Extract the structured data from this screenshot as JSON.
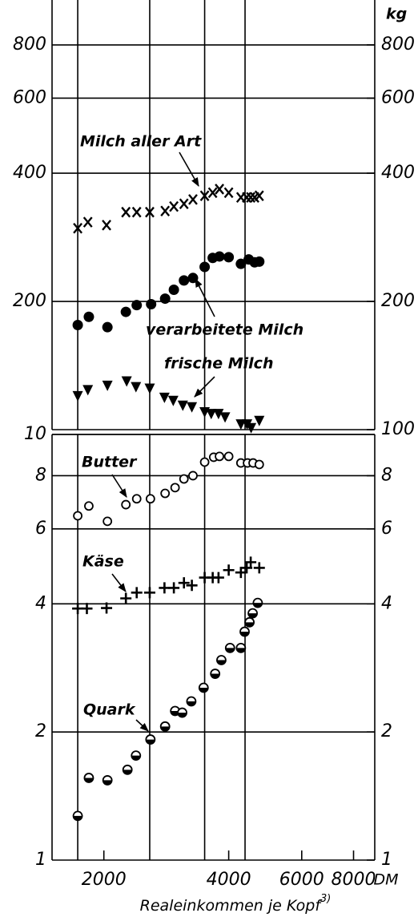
{
  "chart_data": [
    {
      "type": "scatter",
      "unit": "kg",
      "log": true,
      "xlim": [
        1500,
        9000
      ],
      "xgrid": [
        1730,
        2580,
        3500,
        4380
      ],
      "ylim": [
        100,
        1020
      ],
      "yticks": [
        200,
        400,
        600,
        800
      ],
      "y2lim": [
        100,
        1020
      ],
      "y2ticks": [
        100,
        200,
        400,
        600,
        800
      ],
      "series": [
        {
          "name": "Milch aller Art",
          "marker": "x",
          "color": "#000000",
          "x": [
            1730,
            1830,
            2030,
            2260,
            2400,
            2580,
            2810,
            2950,
            3120,
            3280,
            3500,
            3660,
            3800,
            4000,
            4280,
            4420,
            4520,
            4620,
            4740
          ],
          "values": [
            297,
            307,
            302,
            324,
            324,
            324,
            326,
            334,
            339,
            347,
            354,
            360,
            367,
            360,
            351,
            351,
            351,
            351,
            354
          ]
        },
        {
          "name": "verarbeitete Milch",
          "marker": "dot",
          "color": "#000000",
          "x": [
            1730,
            1840,
            2040,
            2260,
            2400,
            2600,
            2810,
            2950,
            3120,
            3280,
            3500,
            3660,
            3800,
            4000,
            4280,
            4470,
            4620,
            4740
          ],
          "values": [
            176,
            184,
            174,
            189,
            196,
            197,
            203,
            213,
            224,
            227,
            241,
            253,
            255,
            254,
            245,
            251,
            247,
            248
          ]
        },
        {
          "name": "frische Milch",
          "marker": "triangle",
          "color": "#000000",
          "x": [
            1730,
            1830,
            2040,
            2270,
            2390,
            2580,
            2800,
            2940,
            3100,
            3260,
            3500,
            3630,
            3780,
            3920,
            4280,
            4430,
            4530,
            4740
          ],
          "values": [
            120,
            124,
            127,
            130,
            126,
            125,
            119,
            117,
            114,
            113,
            110,
            109,
            109,
            107,
            103,
            103,
            101,
            105
          ]
        }
      ]
    },
    {
      "type": "scatter",
      "log": true,
      "xlim": [
        1500,
        9000
      ],
      "xgrid": [
        1730,
        2580,
        3500,
        4380
      ],
      "xticks": [
        2000,
        4000,
        6000,
        8000
      ],
      "xunit": "DM",
      "xlabel": "Realeinkommen je Kopf",
      "xlabel_note": "3)",
      "ylim": [
        1,
        10
      ],
      "yticks": [
        1,
        2,
        4,
        6,
        8,
        10
      ],
      "y2lim": [
        1,
        10
      ],
      "y2ticks": [
        1,
        2,
        4,
        6,
        8
      ],
      "series": [
        {
          "name": "Butter",
          "marker": "circle",
          "color": "#000000",
          "x": [
            1730,
            1840,
            2040,
            2260,
            2400,
            2590,
            2810,
            2970,
            3120,
            3280,
            3500,
            3680,
            3800,
            4000,
            4280,
            4440,
            4580,
            4740
          ],
          "values": [
            6.44,
            6.79,
            6.25,
            6.84,
            7.06,
            7.06,
            7.27,
            7.5,
            7.86,
            8.0,
            8.61,
            8.84,
            8.88,
            8.88,
            8.57,
            8.57,
            8.57,
            8.5
          ]
        },
        {
          "name": "Käse",
          "marker": "plus",
          "color": "#000000",
          "x": [
            1730,
            1820,
            2030,
            2260,
            2400,
            2580,
            2800,
            2950,
            3120,
            3260,
            3500,
            3660,
            3780,
            4000,
            4280,
            4420,
            4520,
            4740
          ],
          "values": [
            3.9,
            3.9,
            3.91,
            4.12,
            4.25,
            4.25,
            4.36,
            4.36,
            4.48,
            4.42,
            4.61,
            4.61,
            4.61,
            4.8,
            4.74,
            4.86,
            5.01,
            4.86
          ]
        },
        {
          "name": "Quark",
          "marker": "half",
          "color": "#000000",
          "x": [
            1730,
            1840,
            2040,
            2280,
            2390,
            2590,
            2810,
            2970,
            3090,
            3250,
            3480,
            3710,
            3840,
            4030,
            4280,
            4370,
            4490,
            4570,
            4700
          ],
          "values": [
            1.27,
            1.56,
            1.54,
            1.63,
            1.76,
            1.92,
            2.06,
            2.24,
            2.22,
            2.36,
            2.54,
            2.74,
            2.95,
            3.15,
            3.15,
            3.44,
            3.62,
            3.8,
            4.02
          ]
        }
      ]
    }
  ]
}
